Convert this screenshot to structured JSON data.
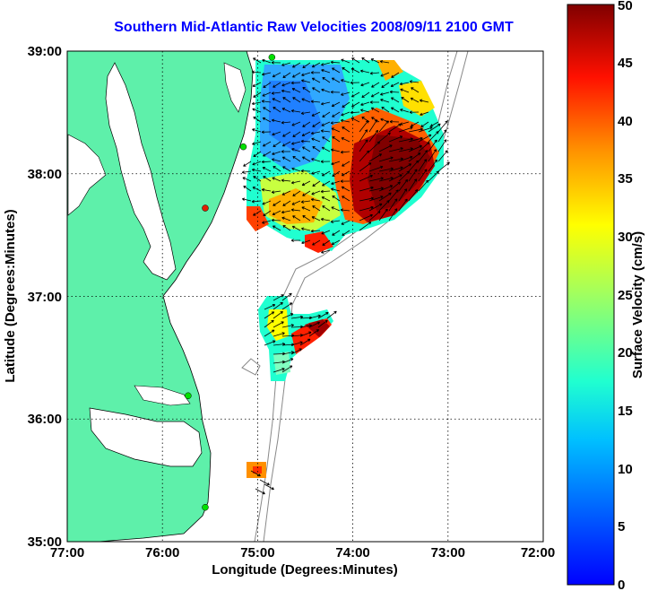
{
  "title": "Southern Mid-Atlantic Raw Velocities 2008/09/11 2100 GMT",
  "map": {
    "xlabel": "Longitude (Degrees:Minutes)",
    "ylabel": "Latitude (Degrees:Minutes)",
    "x_ticks": [
      "77:00",
      "76:00",
      "75:00",
      "74:00",
      "73:00",
      "72:00"
    ],
    "y_ticks": [
      "39:00",
      "38:00",
      "37:00",
      "36:00",
      "35:00"
    ],
    "lon_range": [
      -77,
      -72
    ],
    "lat_range": [
      35,
      39
    ],
    "grid": "dotted",
    "land_color": "#5ef0aa"
  },
  "colorbar": {
    "label": "Surface Velocity (cm/s)",
    "ticks": [
      "0",
      "5",
      "10",
      "15",
      "20",
      "25",
      "30",
      "35",
      "40",
      "45",
      "50"
    ],
    "range": [
      0,
      50
    ],
    "colormap": "jet"
  },
  "stations": [
    {
      "lon": -74.85,
      "lat": 38.95,
      "color": "#00e000"
    },
    {
      "lon": -75.15,
      "lat": 38.22,
      "color": "#00e000"
    },
    {
      "lon": -75.55,
      "lat": 37.72,
      "color": "#e02000"
    },
    {
      "lon": -75.73,
      "lat": 36.19,
      "color": "#00e000"
    },
    {
      "lon": -75.55,
      "lat": 35.28,
      "color": "#00e000"
    }
  ]
}
